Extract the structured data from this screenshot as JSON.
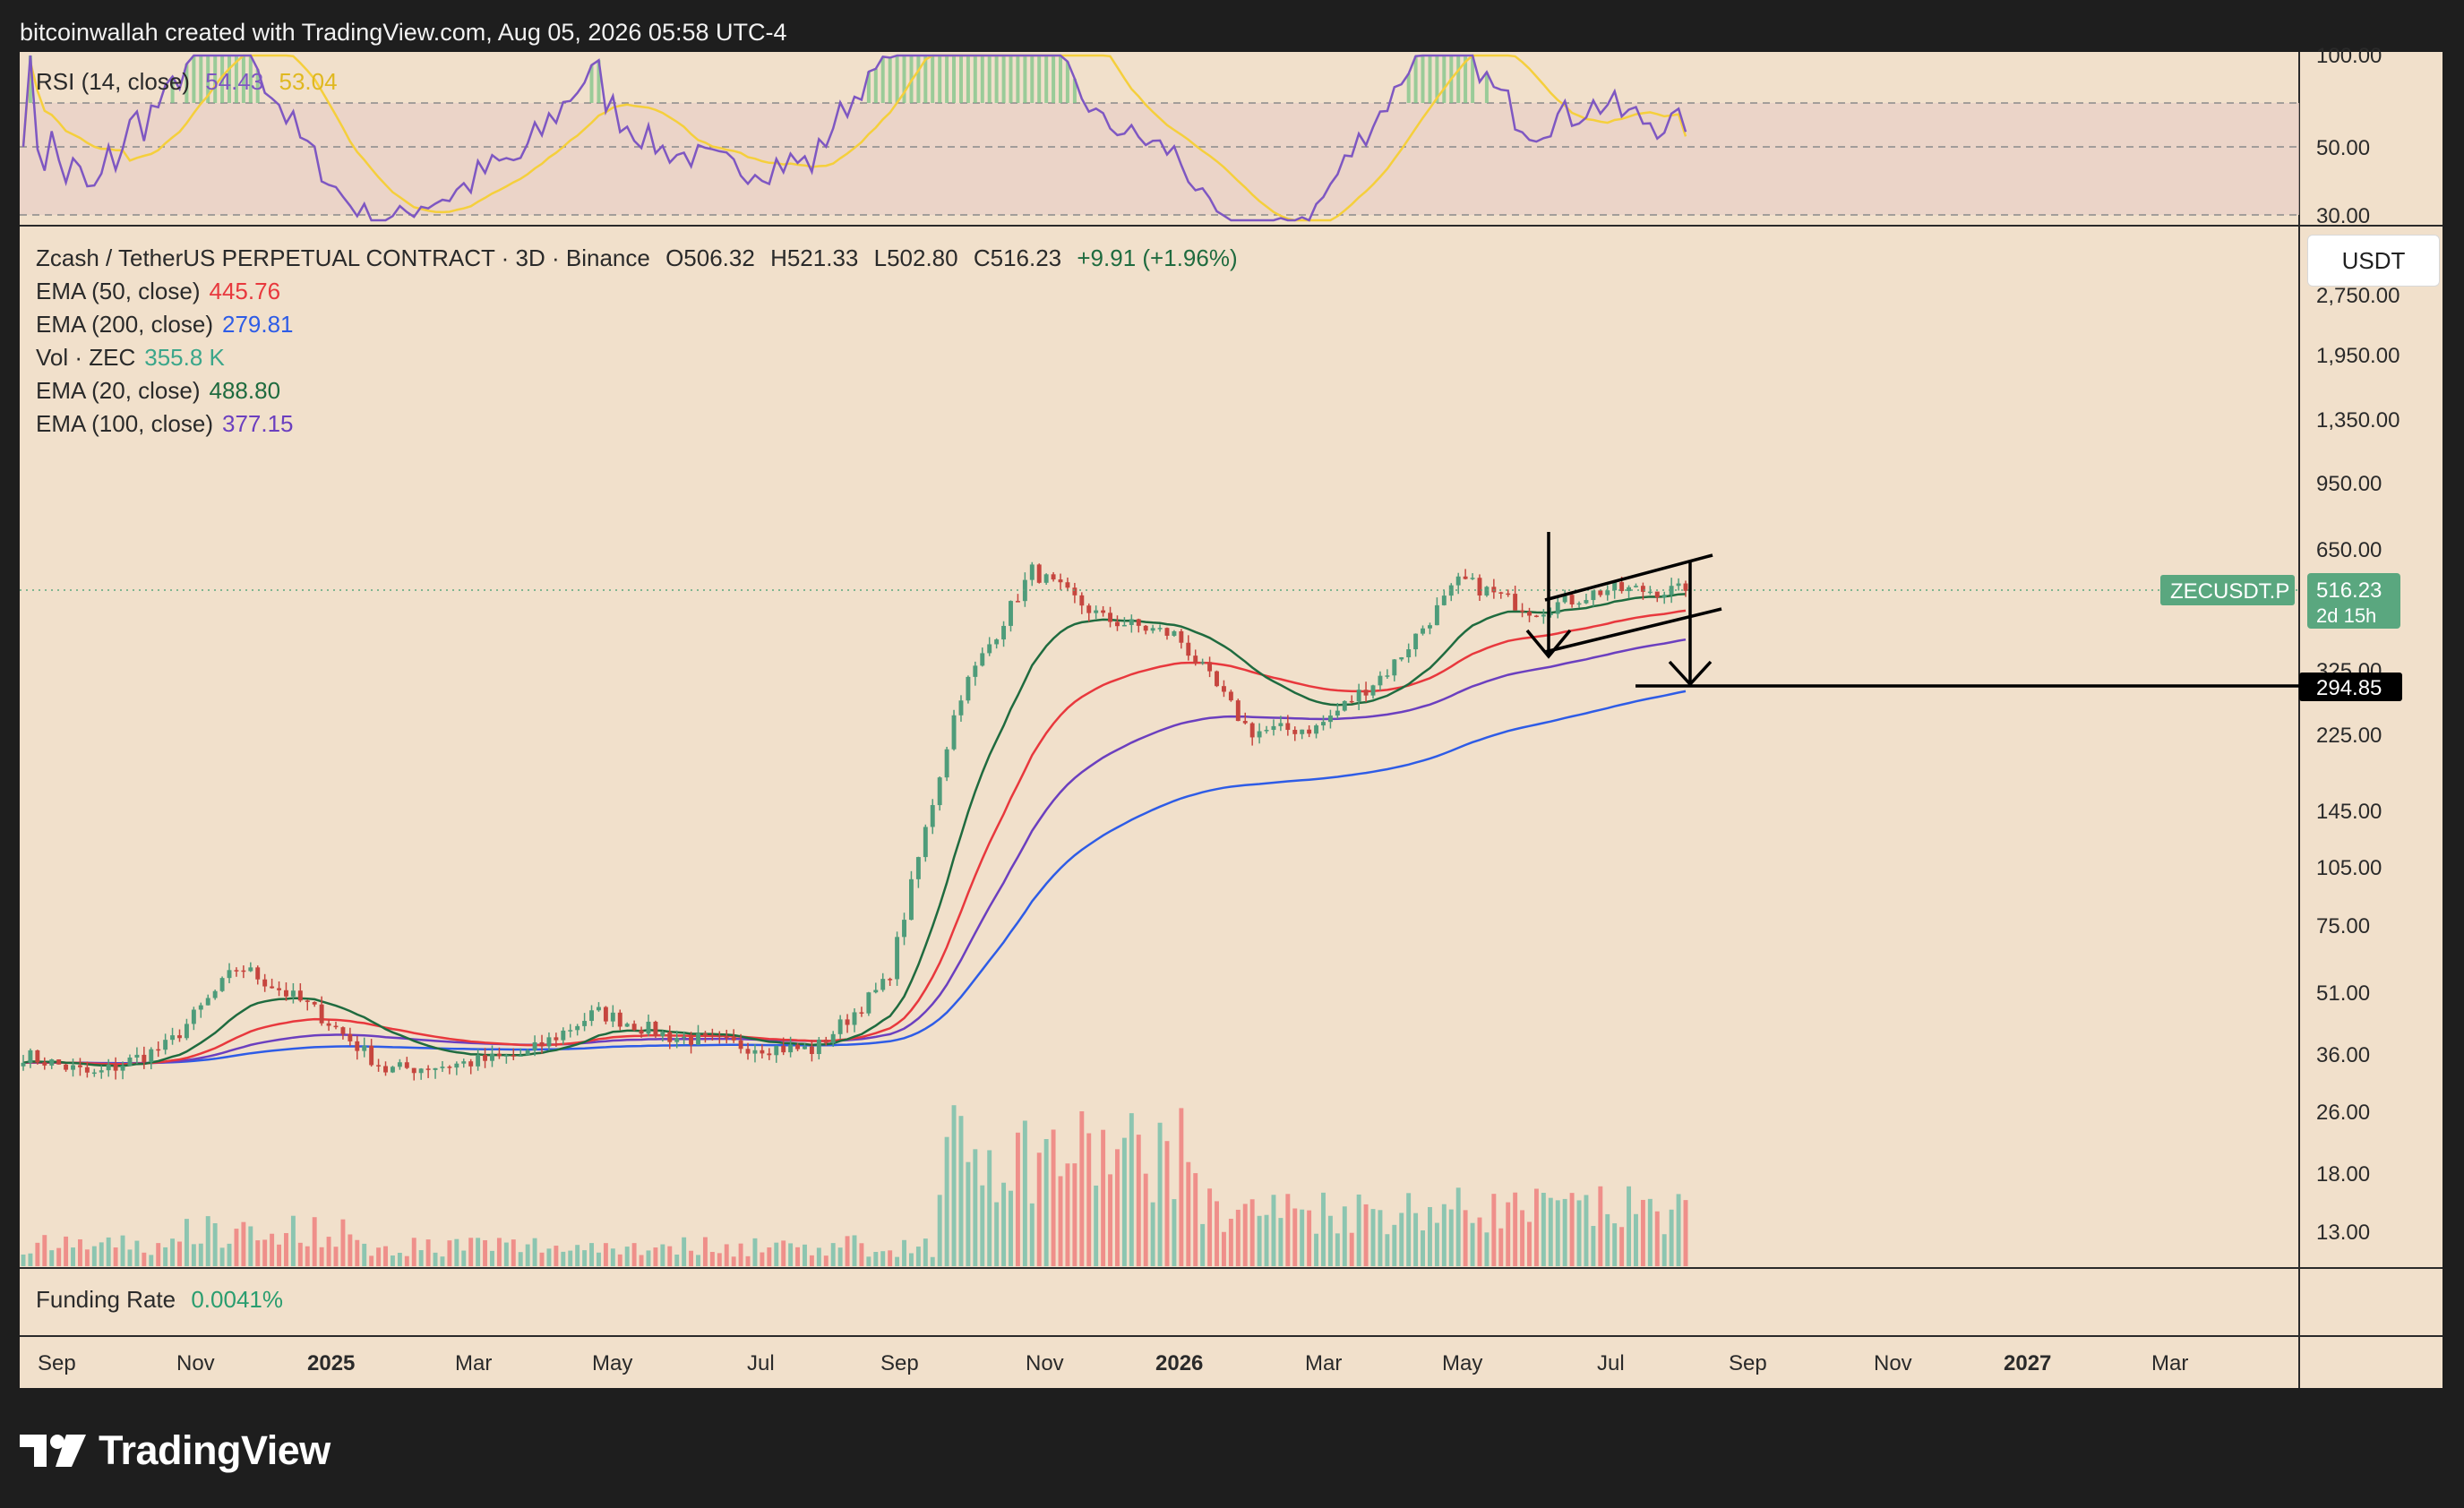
{
  "header": {
    "attribution": "bitcoinwallah created with TradingView.com, Aug 05, 2026 05:58 UTC-4"
  },
  "colors": {
    "background": "#f1e0cb",
    "up_candle": "#4e9c7a",
    "down_candle": "#c6453e",
    "ema20": "#1f6b3f",
    "ema50": "#e8383d",
    "ema100": "#6b3fbf",
    "ema200": "#2e5ce6",
    "rsi": "#7e57c2",
    "rsi_ma": "#f5cf3c",
    "vol_up": "#8cc5b0",
    "vol_down": "#ef8f8a",
    "price_label": "#5aa77f"
  },
  "rsi_panel": {
    "name": "RSI (14, close)",
    "rsi_value": "54.43",
    "rsi_ma_value": "53.04",
    "axis_labels": [
      "100.00",
      "50.00",
      "30.00"
    ]
  },
  "price_panel": {
    "title": "Zcash / TetherUS PERPETUAL CONTRACT · 3D · Binance",
    "open": "O506.32",
    "high": "H521.33",
    "low": "L502.80",
    "close": "C516.23",
    "change": "+9.91 (+1.96%)",
    "indicators": [
      {
        "label": "EMA (50, close)",
        "value": "445.76"
      },
      {
        "label": "EMA (200, close)",
        "value": "279.81"
      },
      {
        "label": "Vol · ZEC",
        "value": "355.8 K"
      },
      {
        "label": "EMA (20, close)",
        "value": "488.80"
      },
      {
        "label": "EMA (100, close)",
        "value": "377.15"
      }
    ],
    "currency_button": "USDT",
    "price_axis": [
      "2,750.00",
      "1,950.00",
      "1,350.00",
      "950.00",
      "650.00",
      "325.00",
      "225.00",
      "145.00",
      "105.00",
      "75.00",
      "51.00",
      "36.00",
      "26.00",
      "18.00",
      "13.00"
    ],
    "symbol_label": "ZECUSDT.P",
    "last_price": "516.23",
    "countdown": "2d 15h",
    "target_label": "294.85"
  },
  "funding_panel": {
    "label": "Funding Rate",
    "value": "0.0041%"
  },
  "time_axis": [
    "Sep",
    "Nov",
    "2025",
    "Mar",
    "May",
    "Jul",
    "Sep",
    "Nov",
    "2026",
    "Mar",
    "May",
    "Jul",
    "Sep",
    "Nov",
    "2027",
    "Mar"
  ],
  "footer": {
    "brand": "TradingView"
  },
  "chart_data": {
    "type": "candlestick",
    "symbol": "ZECUSDT.P",
    "timeframe": "3D",
    "scale": "log",
    "close_series": [
      {
        "date": "2024-09-01",
        "close": 36
      },
      {
        "date": "2024-10-01",
        "close": 32
      },
      {
        "date": "2024-11-01",
        "close": 38
      },
      {
        "date": "2024-12-01",
        "close": 60
      },
      {
        "date": "2025-01-01",
        "close": 47
      },
      {
        "date": "2025-02-01",
        "close": 33
      },
      {
        "date": "2025-03-01",
        "close": 34
      },
      {
        "date": "2025-04-01",
        "close": 36
      },
      {
        "date": "2025-05-01",
        "close": 46
      },
      {
        "date": "2025-06-01",
        "close": 40
      },
      {
        "date": "2025-07-01",
        "close": 38
      },
      {
        "date": "2025-08-01",
        "close": 37
      },
      {
        "date": "2025-09-01",
        "close": 55
      },
      {
        "date": "2025-10-01",
        "close": 280
      },
      {
        "date": "2025-11-01",
        "close": 580
      },
      {
        "date": "2025-12-01",
        "close": 440
      },
      {
        "date": "2026-01-01",
        "close": 400
      },
      {
        "date": "2026-02-01",
        "close": 230
      },
      {
        "date": "2026-03-01",
        "close": 235
      },
      {
        "date": "2026-04-01",
        "close": 330
      },
      {
        "date": "2026-05-01",
        "close": 550
      },
      {
        "date": "2026-06-01",
        "close": 460
      },
      {
        "date": "2026-07-01",
        "close": 520
      },
      {
        "date": "2026-08-05",
        "close": 516.23
      }
    ],
    "ema20_last": 488.8,
    "ema50_last": 445.76,
    "ema100_last": 377.15,
    "ema200_last": 279.81,
    "volume_last": "355.8 K",
    "rsi_last": 54.43,
    "rsi_ma_last": 53.04,
    "funding_rate": "0.0041%",
    "target_price": 294.85
  }
}
